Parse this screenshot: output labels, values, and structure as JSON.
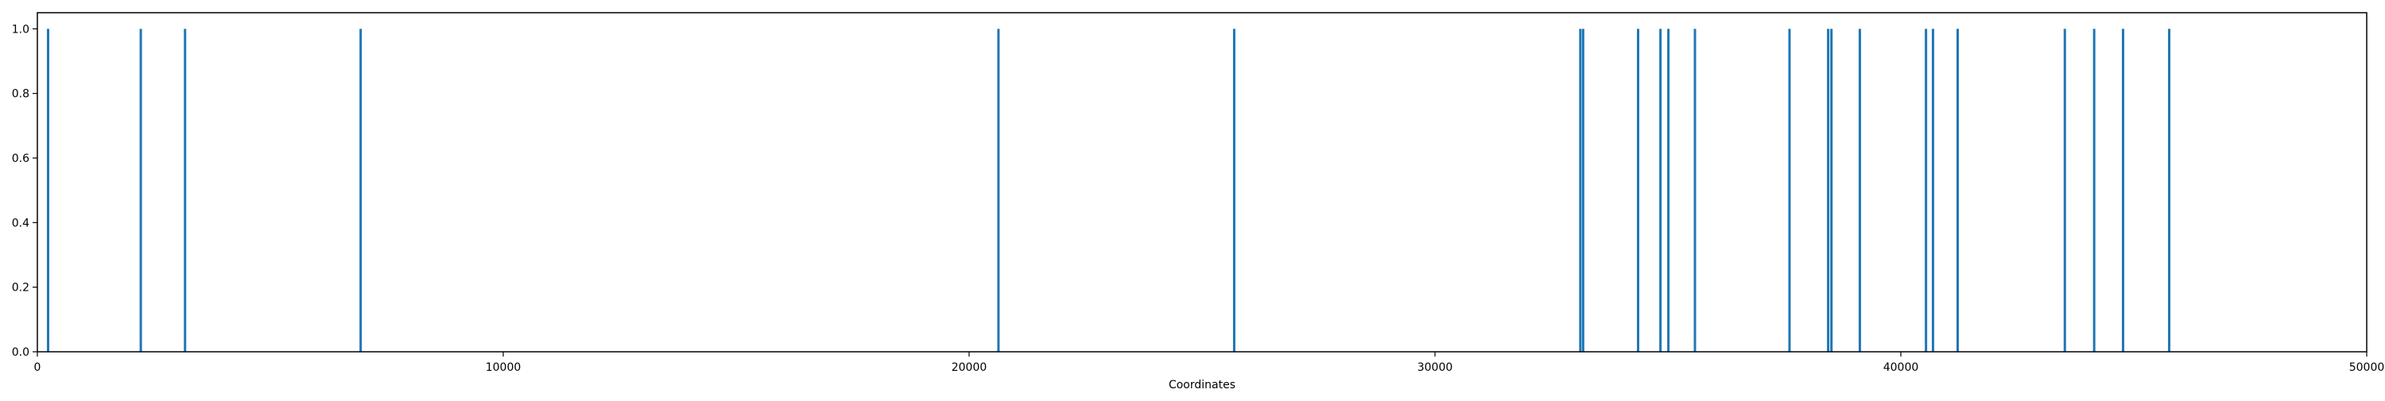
{
  "chart_data": {
    "type": "bar",
    "title": "",
    "xlabel": "Coordinates",
    "ylabel": "",
    "xlim": [
      0,
      50000
    ],
    "ylim": [
      0,
      1.05
    ],
    "xticks": [
      0,
      10000,
      20000,
      30000,
      40000,
      50000
    ],
    "xtick_labels": [
      "0",
      "10000",
      "20000",
      "30000",
      "40000",
      "50000"
    ],
    "yticks": [
      0.0,
      0.2,
      0.4,
      0.6,
      0.8,
      1.0
    ],
    "ytick_labels": [
      "0.0",
      "0.2",
      "0.4",
      "0.6",
      "0.8",
      "1.0"
    ],
    "grid": false,
    "legend": false,
    "bar_color": "#1f77b4",
    "x": [
      230,
      2220,
      3170,
      6940,
      20630,
      25690,
      33120,
      33180,
      34360,
      34840,
      35010,
      35580,
      37610,
      38440,
      38510,
      39120,
      40540,
      40690,
      41220,
      43520,
      44150,
      44770,
      45760
    ],
    "values": [
      1,
      1,
      1,
      1,
      1,
      1,
      1,
      1,
      1,
      1,
      1,
      1,
      1,
      1,
      1,
      1,
      1,
      1,
      1,
      1,
      1,
      1,
      1
    ]
  }
}
